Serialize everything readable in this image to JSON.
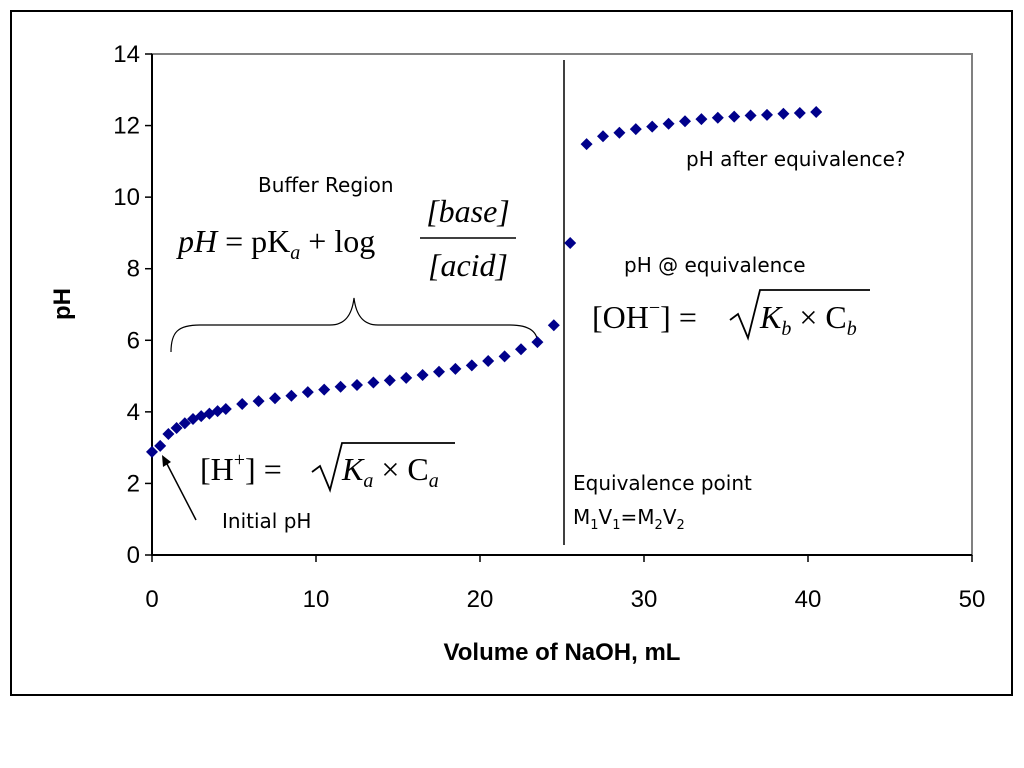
{
  "chart_data": {
    "type": "scatter",
    "xlabel": "Volume of NaOH, mL",
    "ylabel": "pH",
    "xlim": [
      0,
      50
    ],
    "ylim": [
      0,
      14
    ],
    "xticks": [
      "0",
      "10",
      "20",
      "30",
      "40",
      "50"
    ],
    "yticks": [
      "0",
      "2",
      "4",
      "6",
      "8",
      "10",
      "12",
      "14"
    ],
    "grid": false,
    "marker_color": "#00008B",
    "series": [
      {
        "points": [
          [
            0,
            2.88
          ],
          [
            0.5,
            3.05
          ],
          [
            1,
            3.38
          ],
          [
            1.5,
            3.55
          ],
          [
            2,
            3.68
          ],
          [
            2.5,
            3.8
          ],
          [
            3,
            3.88
          ],
          [
            3.5,
            3.95
          ],
          [
            4,
            4.02
          ],
          [
            4.5,
            4.08
          ],
          [
            5.5,
            4.22
          ],
          [
            6.5,
            4.3
          ],
          [
            7.5,
            4.38
          ],
          [
            8.5,
            4.45
          ],
          [
            9.5,
            4.55
          ],
          [
            10.5,
            4.62
          ],
          [
            11.5,
            4.7
          ],
          [
            12.5,
            4.75
          ],
          [
            13.5,
            4.82
          ],
          [
            14.5,
            4.88
          ],
          [
            15.5,
            4.95
          ],
          [
            16.5,
            5.03
          ],
          [
            17.5,
            5.12
          ],
          [
            18.5,
            5.2
          ],
          [
            19.5,
            5.3
          ],
          [
            20.5,
            5.42
          ],
          [
            21.5,
            5.55
          ],
          [
            22.5,
            5.75
          ],
          [
            23.5,
            5.95
          ],
          [
            24.5,
            6.42
          ],
          [
            25.5,
            8.72
          ],
          [
            26.5,
            11.48
          ],
          [
            27.5,
            11.7
          ],
          [
            28.5,
            11.8
          ],
          [
            29.5,
            11.9
          ],
          [
            30.5,
            11.97
          ],
          [
            31.5,
            12.05
          ],
          [
            32.5,
            12.12
          ],
          [
            33.5,
            12.18
          ],
          [
            34.5,
            12.22
          ],
          [
            35.5,
            12.25
          ],
          [
            36.5,
            12.28
          ],
          [
            37.5,
            12.3
          ],
          [
            38.5,
            12.33
          ],
          [
            39.5,
            12.35
          ],
          [
            40.5,
            12.38
          ]
        ]
      }
    ],
    "equivalence_line_x": 25,
    "annotations": {
      "buffer_region": "Buffer Region",
      "initial_ph": "Initial pH",
      "after_equivalence": "pH after equivalence?",
      "at_equivalence": "pH @ equivalence",
      "equivalence_point": "Equivalence point",
      "m1": "M",
      "m1_sub": "1",
      "v1": "V",
      "v1_sub": "1",
      "eq_sign": "=M",
      "m2_sub": "2",
      "v2": "V",
      "v2_sub": "2"
    },
    "equations": {
      "buffer": {
        "lhs": "pH",
        "eq": " = pK",
        "a_sub": "a",
        "plus_log": " + log",
        "numerator": "[base]",
        "denominator": "[acid]"
      },
      "initial": {
        "lhs_open": "[H",
        "plus_sup": "+",
        "lhs_close": "] =",
        "ka": "K",
        "a_sub": "a",
        "times": " × C",
        "a_sub2": "a"
      },
      "equivalence": {
        "lhs_open": "[OH",
        "minus_sup": "−",
        "lhs_close": "] =",
        "kb": "K",
        "b_sub": "b",
        "times": " × C",
        "b_sub2": "b"
      }
    }
  }
}
